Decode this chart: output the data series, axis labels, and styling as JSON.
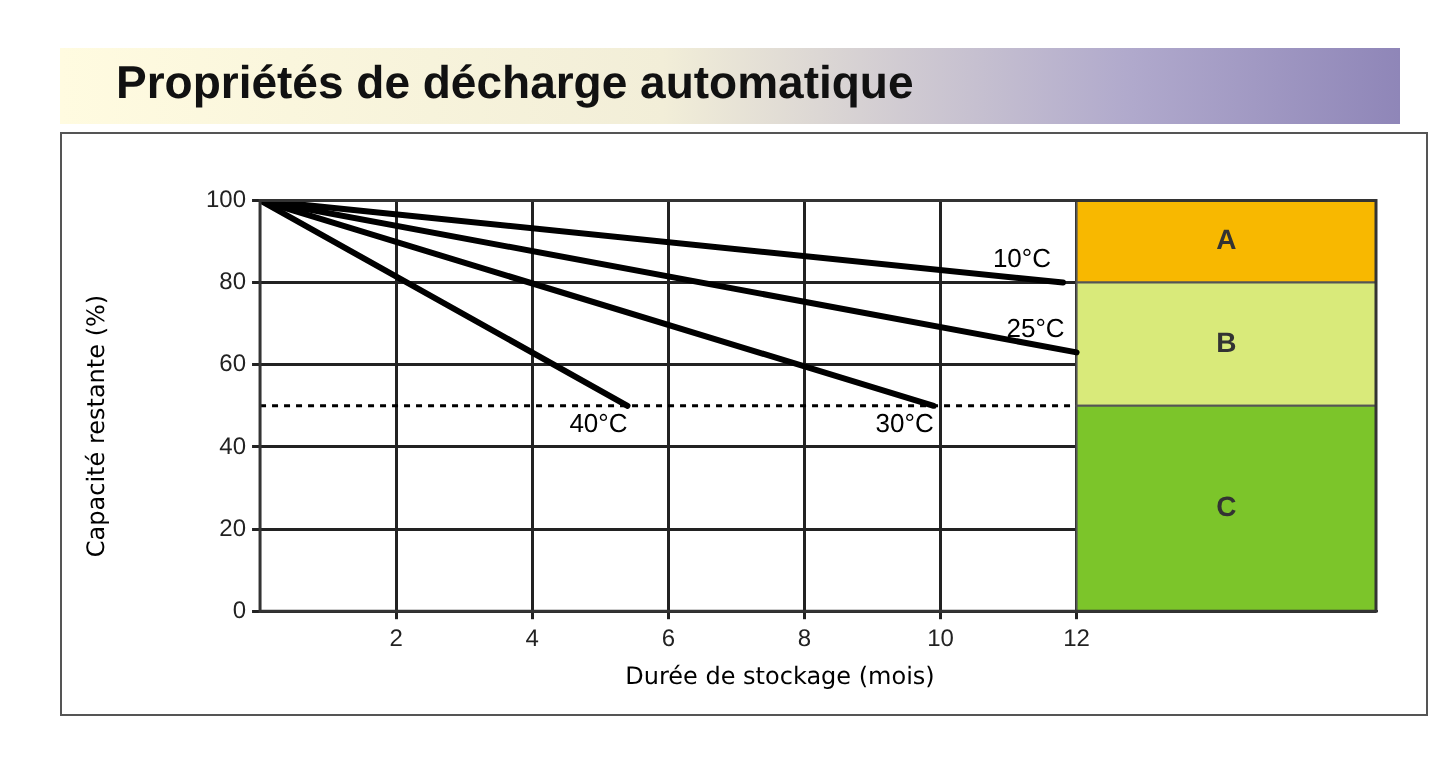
{
  "chart_data": {
    "type": "line",
    "title": "Propriétés de décharge automatique",
    "xlabel": "Durée de stockage (mois)",
    "ylabel": "Capacité restante (%)",
    "series": [
      {
        "name": "10°C",
        "color": "#000000",
        "x": [
          0,
          11.8
        ],
        "values": [
          100,
          80
        ]
      },
      {
        "name": "25°C",
        "color": "#000000",
        "x": [
          0,
          12
        ],
        "values": [
          100,
          63
        ]
      },
      {
        "name": "30°C",
        "color": "#000000",
        "x": [
          0,
          9.9
        ],
        "values": [
          100,
          50
        ]
      },
      {
        "name": "40°C",
        "color": "#000000",
        "x": [
          0,
          5.4
        ],
        "values": [
          100,
          50
        ]
      }
    ],
    "xlim": [
      0,
      16.4
    ],
    "xticks": [
      2,
      4,
      6,
      8,
      10,
      12
    ],
    "ylim": [
      0,
      100
    ],
    "yticks": [
      0,
      20,
      40,
      60,
      80,
      100
    ],
    "grid": true,
    "legend": false,
    "marker": "none",
    "line_style": "solid",
    "ref_lines": [
      {
        "axis": "y",
        "value": 50,
        "line_style": "dotted",
        "color": "#000000"
      }
    ],
    "bands": [
      {
        "axis": "y",
        "from": 80,
        "to": 100,
        "label": "A",
        "color": "#f8b800"
      },
      {
        "axis": "y",
        "from": 50,
        "to": 80,
        "label": "B",
        "color": "#d9ea7a"
      },
      {
        "axis": "y",
        "from": 0,
        "to": 50,
        "label": "C",
        "color": "#7cc52a"
      }
    ]
  }
}
